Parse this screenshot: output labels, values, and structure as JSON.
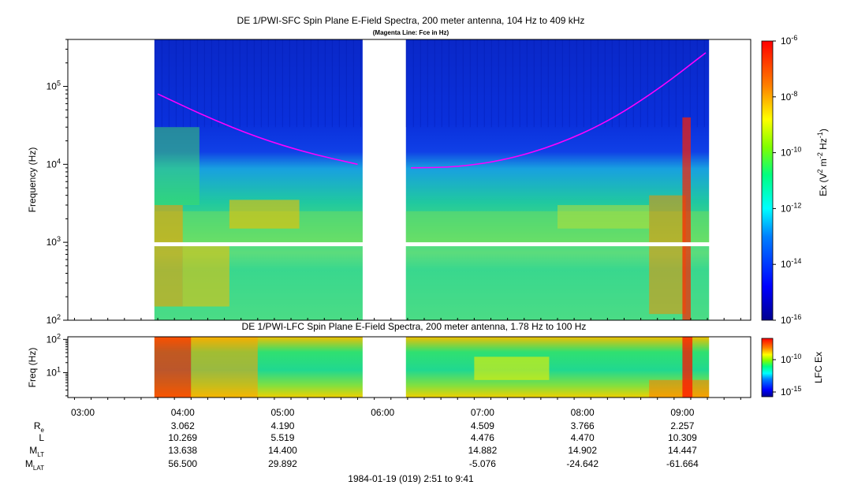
{
  "chart_data": [
    {
      "type": "heatmap",
      "title": "DE 1/PWI-SFC  Spin Plane E-Field Spectra, 200 meter antenna, 104 Hz to 409 kHz",
      "subtitle": "(Magenta Line: Fce in Hz)",
      "ylabel": "Frequency (Hz)",
      "yscale": "log",
      "ylim": [
        100,
        400000
      ],
      "yticks": [
        {
          "base": "10",
          "exp": "2"
        },
        {
          "base": "10",
          "exp": "3"
        },
        {
          "base": "10",
          "exp": "4"
        },
        {
          "base": "10",
          "exp": "5"
        }
      ],
      "colorbar": {
        "label_parts": [
          "Ex (V",
          "2",
          " m",
          "-2",
          " Hz",
          "-1",
          ")"
        ],
        "scale": "log",
        "range": [
          1e-16,
          1e-06
        ],
        "ticks": [
          {
            "base": "10",
            "exp": "-6"
          },
          {
            "base": "10",
            "exp": "-8"
          },
          {
            "base": "10",
            "exp": "-10"
          },
          {
            "base": "10",
            "exp": "-12"
          },
          {
            "base": "10",
            "exp": "-14"
          },
          {
            "base": "10",
            "exp": "-16"
          }
        ]
      },
      "data_coverage": [
        {
          "start": "03:43",
          "end": "05:48"
        },
        {
          "start": "06:14",
          "end": "09:16"
        }
      ],
      "fce_line": {
        "color": "#ff00ff",
        "segments": [
          {
            "times": [
              "03:45",
              "04:15",
              "04:45",
              "05:15",
              "05:45"
            ],
            "freqs_hz": [
              80000,
              40000,
              22000,
              14000,
              10000
            ]
          },
          {
            "times": [
              "06:17",
              "06:45",
              "07:15",
              "07:45",
              "08:15",
              "08:45",
              "09:14"
            ],
            "freqs_hz": [
              9000,
              9200,
              11500,
              18000,
              35000,
              90000,
              270000
            ]
          }
        ]
      }
    },
    {
      "type": "heatmap",
      "title": "DE 1/PWI-LFC  Spin Plane E-Field Spectra, 200 meter antenna, 1.78 Hz to 100 Hz",
      "ylabel": "Freq (Hz)",
      "yscale": "log",
      "ylim": [
        1.78,
        120
      ],
      "yticks": [
        {
          "base": "10",
          "exp": "1"
        },
        {
          "base": "10",
          "exp": "2"
        }
      ],
      "colorbar": {
        "label": "LFC Ex",
        "scale": "log",
        "ticks": [
          {
            "base": "10",
            "exp": "-10"
          },
          {
            "base": "10",
            "exp": "-15"
          }
        ]
      },
      "data_coverage": [
        {
          "start": "03:43",
          "end": "05:48"
        },
        {
          "start": "06:14",
          "end": "09:16"
        }
      ]
    }
  ],
  "x_axis": {
    "range": [
      "02:51",
      "09:41"
    ],
    "ticks": [
      "03:00",
      "04:00",
      "05:00",
      "06:00",
      "07:00",
      "08:00",
      "09:00"
    ]
  },
  "ephemeris": {
    "rows": [
      {
        "label": "R",
        "sub": "e",
        "values": [
          "",
          "3.062",
          "4.190",
          "",
          "4.509",
          "3.766",
          "2.257"
        ]
      },
      {
        "label": "L",
        "sub": "",
        "values": [
          "",
          "10.269",
          "5.519",
          "",
          "4.476",
          "4.470",
          "10.309"
        ]
      },
      {
        "label": "M",
        "sub": "LT",
        "values": [
          "",
          "13.638",
          "14.400",
          "",
          "14.882",
          "14.902",
          "14.447"
        ]
      },
      {
        "label": "M",
        "sub": "LAT",
        "values": [
          "",
          "56.500",
          "29.892",
          "",
          "-5.076",
          "-24.642",
          "-61.664"
        ]
      }
    ]
  },
  "footer": "1984-01-19 (019) 2:51 to 9:41"
}
